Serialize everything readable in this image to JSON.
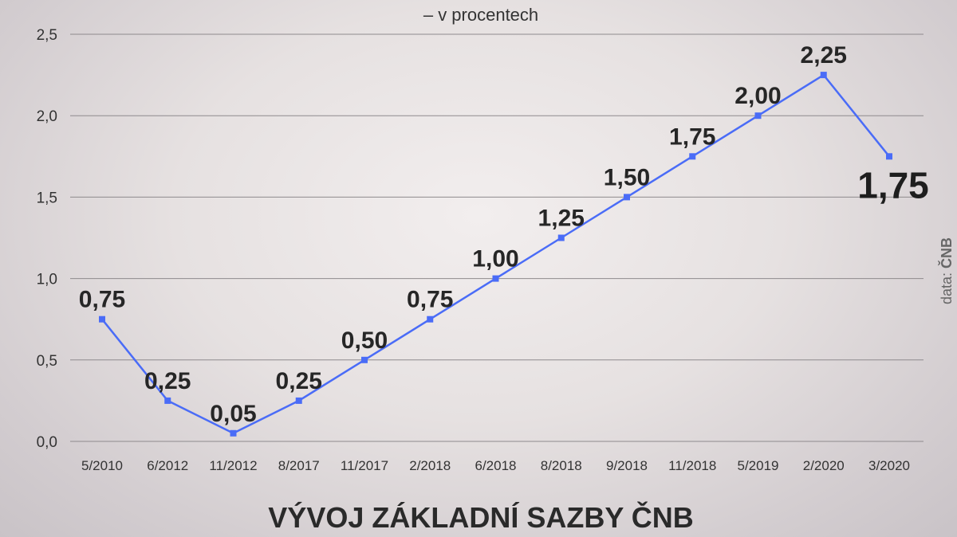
{
  "chart_data": {
    "type": "line",
    "title": "VÝVOJ ZÁKLADNÍ SAZBY ČNB",
    "subtitle": "– v procentech",
    "source_prefix": "data: ",
    "source_name": "ČNB",
    "categories": [
      "5/2010",
      "6/2012",
      "11/2012",
      "8/2017",
      "11/2017",
      "2/2018",
      "6/2018",
      "8/2018",
      "9/2018",
      "11/2018",
      "5/2019",
      "2/2020",
      "3/2020"
    ],
    "values": [
      0.75,
      0.25,
      0.05,
      0.25,
      0.5,
      0.75,
      1.0,
      1.25,
      1.5,
      1.75,
      2.0,
      2.25,
      1.75
    ],
    "data_labels": [
      "0,75",
      "0,25",
      "0,05",
      "0,25",
      "0,50",
      "0,75",
      "1,00",
      "1,25",
      "1,50",
      "1,75",
      "2,00",
      "2,25",
      "1,75"
    ],
    "ylim": [
      0,
      2.5
    ],
    "yticks": [
      0,
      0.5,
      1.0,
      1.5,
      2.0,
      2.5
    ],
    "ytick_labels": [
      "0,0",
      "0,5",
      "1,0",
      "1,5",
      "2,0",
      "2,5"
    ],
    "grid": true,
    "line_color": "#4a6cf7",
    "xlabel": "",
    "ylabel": ""
  }
}
